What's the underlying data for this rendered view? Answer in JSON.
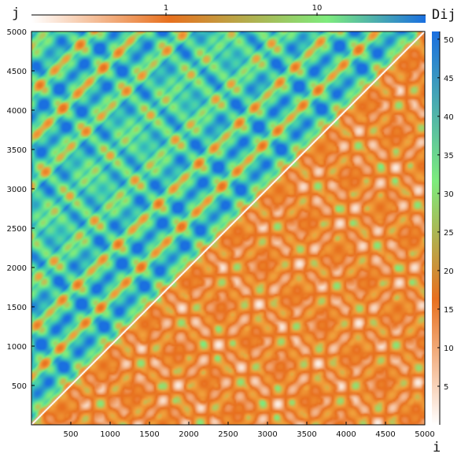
{
  "chart_data": {
    "type": "heatmap",
    "title": "",
    "xlabel": "i",
    "ylabel": "j",
    "colorbar_label": "Dij",
    "x_range": [
      0,
      5000
    ],
    "y_range": [
      0,
      5000
    ],
    "x_ticks": [
      500,
      1000,
      1500,
      2000,
      2500,
      3000,
      3500,
      4000,
      4500,
      5000
    ],
    "y_ticks": [
      500,
      1000,
      1500,
      2000,
      2500,
      3000,
      3500,
      4000,
      4500,
      5000
    ],
    "upper_triangle_colorbar": {
      "position": "top",
      "scale": "log",
      "ticks": [
        "1",
        "10"
      ],
      "colors": [
        "#ffffff",
        "#e8701e",
        "#7dec7d",
        "#1a6fe0"
      ]
    },
    "lower_triangle_colorbar": {
      "position": "right",
      "scale": "linear",
      "range": [
        0,
        51
      ],
      "ticks": [
        5,
        10,
        15,
        20,
        25,
        30,
        35,
        40,
        45,
        50
      ],
      "colors": [
        "#ffffff",
        "#e8701e",
        "#7dec7d",
        "#1a6fe0"
      ]
    },
    "grid": false
  },
  "labels": {
    "x_axis": "i",
    "y_axis": "j",
    "colorbar": "Dij",
    "top_tick_1": "1",
    "top_tick_10": "10"
  }
}
